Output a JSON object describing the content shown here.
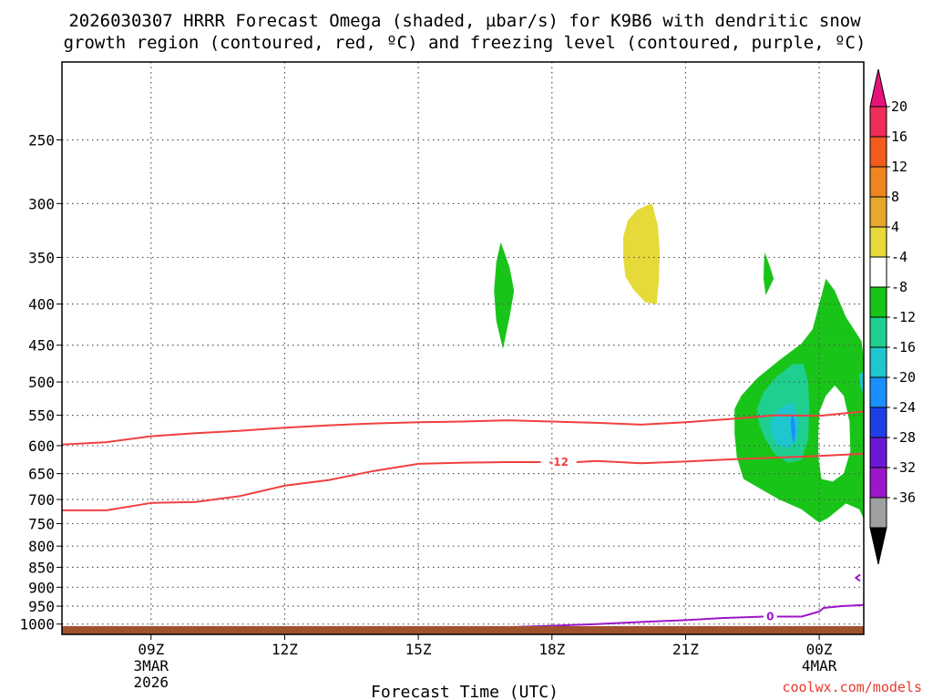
{
  "title": {
    "line1": "2026030307 HRRR Forecast Omega (shaded, µbar/s) for K9B6 with dendritic snow",
    "line2": "growth region (contoured, red, ºC) and freezing level (contoured, purple, ºC)"
  },
  "credit": "coolwx.com/models",
  "colors": {
    "omega_neg4_neg8": "#19c419",
    "omega_neg8_neg12": "#1fcf8f",
    "omega_neg12_neg16": "#1ec6cf",
    "omega_neg16_neg20": "#1a8fff",
    "omega_pos4_pos8": "#e5da3a",
    "dgz_contour": "#f04040",
    "freezing_contour": "#9b17c9",
    "terrain": "#a0522d",
    "grid": "#555555"
  },
  "chart_data": {
    "type": "heatmap",
    "xlabel": "Forecast Time (UTC)",
    "ylabel": "",
    "x_ticks": [
      {
        "label": "09Z",
        "sub1": "3MAR",
        "sub2": "2026",
        "hour": 9
      },
      {
        "label": "12Z",
        "sub1": "",
        "sub2": "",
        "hour": 12
      },
      {
        "label": "15Z",
        "sub1": "",
        "sub2": "",
        "hour": 15
      },
      {
        "label": "18Z",
        "sub1": "",
        "sub2": "",
        "hour": 18
      },
      {
        "label": "21Z",
        "sub1": "",
        "sub2": "",
        "hour": 21
      },
      {
        "label": "00Z",
        "sub1": "4MAR",
        "sub2": "",
        "hour": 24
      }
    ],
    "xlim_hours": [
      7,
      25
    ],
    "y_ticks": [
      "250",
      "300",
      "350",
      "400",
      "450",
      "500",
      "550",
      "600",
      "650",
      "700",
      "750",
      "800",
      "850",
      "900",
      "950",
      "1000"
    ],
    "ylim_hpa": [
      200,
      1030
    ],
    "y_scale": "log-pressure (reversed)",
    "colorbar": {
      "labels": [
        "20",
        "16",
        "12",
        "8",
        "4",
        "-4",
        "-8",
        "-12",
        "-16",
        "-20",
        "-24",
        "-28",
        "-32",
        "-36"
      ],
      "colors": [
        "#ee2d5a",
        "#f25a1e",
        "#ee861f",
        "#e6a82e",
        "#e5da3a",
        "#ffffff",
        "#19c419",
        "#1fcf8f",
        "#1ec6cf",
        "#1a8fff",
        "#1f3fe6",
        "#6b17d6",
        "#9b17c9",
        "#a0a0a0"
      ],
      "top_arrow_color": "#e8137a",
      "bottom_arrow_color": "#000000"
    },
    "contours": [
      {
        "type": "dgz",
        "value": "-12",
        "label": "-12"
      },
      {
        "type": "dgz",
        "value": "-18",
        "label": ""
      },
      {
        "type": "freezing",
        "value": "0",
        "label": "0"
      }
    ]
  }
}
